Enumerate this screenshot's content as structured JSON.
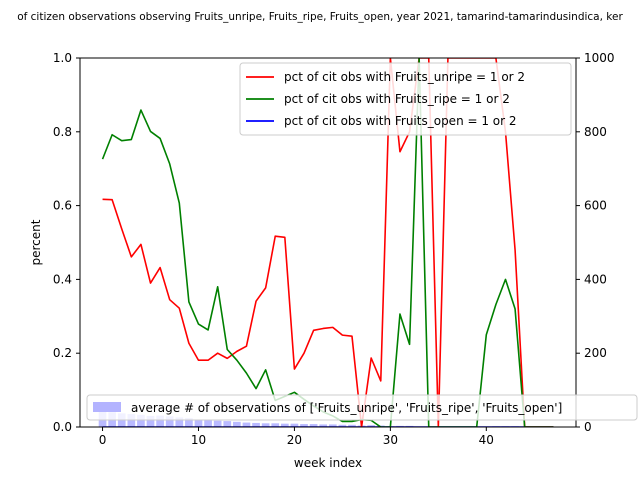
{
  "chart_data": {
    "type": "line",
    "title": "of citizen observations observing Fruits_unripe, Fruits_ripe, Fruits_open, year 2021, tamarind-tamarindusindica, ker",
    "xlabel": "week index",
    "ylabel": "percent",
    "xlim": [
      -2.35,
      49.35
    ],
    "ylim": [
      0,
      1
    ],
    "y2lim": [
      0,
      1000
    ],
    "xticks": [
      0,
      10,
      20,
      30,
      40
    ],
    "yticks": [
      0.0,
      0.2,
      0.4,
      0.6,
      0.8,
      1.0
    ],
    "y2ticks": [
      0,
      200,
      400,
      600,
      800,
      1000
    ],
    "ytick_labels": [
      "0.0",
      "0.2",
      "0.4",
      "0.6",
      "0.8",
      "1.0"
    ],
    "grid": false,
    "legend_placement": "upper-right",
    "series": [
      {
        "name": "pct of cit obs with Fruits_unripe = 1 or 2",
        "color": "#ff0000",
        "x": [
          0,
          1,
          2,
          3,
          4,
          5,
          6,
          7,
          8,
          9,
          10,
          11,
          12,
          13,
          14,
          15,
          16,
          17,
          18,
          19,
          20,
          21,
          22,
          23,
          24,
          25,
          26,
          27,
          28,
          29,
          30,
          31,
          32,
          33,
          34,
          35,
          36,
          37,
          38,
          39,
          40,
          41,
          42,
          43,
          44,
          45,
          46,
          47
        ],
        "values": [
          0.617,
          0.616,
          0.537,
          0.461,
          0.495,
          0.39,
          0.432,
          0.345,
          0.322,
          0.227,
          0.181,
          0.181,
          0.2,
          0.186,
          0.205,
          0.219,
          0.341,
          0.377,
          0.517,
          0.514,
          0.157,
          0.2,
          0.262,
          0.267,
          0.27,
          0.249,
          0.246,
          0.0,
          0.187,
          0.125,
          1.0,
          0.746,
          0.8,
          1.0,
          1.0,
          0.0,
          1.0,
          1.0,
          1.0,
          1.0,
          1.0,
          1.0,
          0.8,
          0.48,
          0.0,
          0.0,
          0.0,
          0.0
        ]
      },
      {
        "name": "pct of cit obs with Fruits_ripe = 1 or 2",
        "color": "#008000",
        "x": [
          0,
          1,
          2,
          3,
          4,
          5,
          6,
          7,
          8,
          9,
          10,
          11,
          12,
          13,
          14,
          15,
          16,
          17,
          18,
          19,
          20,
          21,
          22,
          23,
          24,
          25,
          26,
          27,
          28,
          29,
          30,
          31,
          32,
          33,
          34,
          35,
          36,
          37,
          38,
          39,
          40,
          41,
          42,
          43,
          44,
          45,
          46,
          47
        ],
        "values": [
          0.726,
          0.792,
          0.776,
          0.779,
          0.859,
          0.801,
          0.782,
          0.713,
          0.607,
          0.339,
          0.279,
          0.263,
          0.38,
          0.21,
          0.181,
          0.146,
          0.104,
          0.155,
          0.072,
          0.083,
          0.094,
          0.075,
          0.057,
          0.041,
          0.03,
          0.015,
          0.015,
          0.02,
          0.018,
          0.0,
          0.0,
          0.306,
          0.224,
          1.0,
          0.0,
          0.0,
          0.0,
          0.0,
          0.0,
          0.0,
          0.25,
          0.332,
          0.4,
          0.32,
          0.0,
          0.0,
          0.0,
          0.0
        ]
      },
      {
        "name": "pct of cit obs with Fruits_open = 1 or 2",
        "color": "#0000ff",
        "x": [
          0,
          1,
          2,
          3,
          4,
          5,
          6,
          7,
          8,
          9,
          10,
          11,
          12,
          13,
          14,
          15,
          16,
          17,
          18,
          19,
          20,
          21,
          22,
          23,
          24,
          25,
          26,
          27,
          28,
          29,
          30,
          31,
          32,
          33,
          34,
          35,
          36,
          37,
          38,
          39,
          40,
          41,
          42,
          43,
          44,
          45,
          46,
          47
        ],
        "values": [
          0,
          0,
          0,
          0,
          0,
          0,
          0,
          0,
          0,
          0,
          0,
          0,
          0,
          0,
          0,
          0,
          0,
          0,
          0,
          0,
          0,
          0,
          0,
          0,
          0,
          0,
          0,
          0,
          0,
          0,
          0,
          0,
          0,
          0,
          0,
          0,
          0,
          0,
          0,
          0,
          0,
          0,
          0,
          0,
          0,
          0,
          0,
          0
        ]
      },
      {
        "name": "average # of observations of ['Fruits_unripe', 'Fruits_ripe', 'Fruits_open']",
        "type": "bar",
        "axis": "right",
        "color": "#b3b3ff",
        "x": [
          0,
          1,
          2,
          3,
          4,
          5,
          6,
          7,
          8,
          9,
          10,
          11,
          12,
          13,
          14,
          15,
          16,
          17,
          18,
          19,
          20,
          21,
          22,
          23,
          24,
          25,
          26,
          27,
          28,
          29,
          30,
          31,
          32,
          41,
          42,
          43
        ],
        "values": [
          42,
          40,
          37,
          35,
          33,
          30,
          31,
          29,
          26,
          24,
          20,
          18,
          17,
          16,
          14,
          12,
          11,
          10,
          10,
          9,
          9,
          8,
          8,
          7,
          7,
          6,
          6,
          4,
          5,
          4,
          2,
          3,
          3,
          2,
          2,
          2
        ]
      }
    ]
  }
}
